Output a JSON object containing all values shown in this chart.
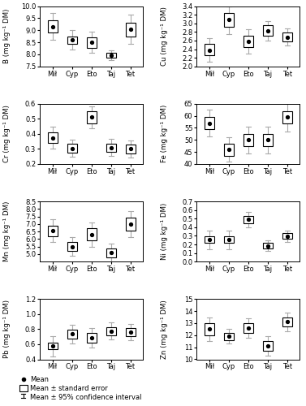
{
  "cat_labels": [
    "Mił",
    "Cyp",
    "Eto",
    "Taj",
    "Tet"
  ],
  "subplots": [
    {
      "label": "B (mg kg⁻¹ DM)",
      "ylim": [
        7.5,
        10.0
      ],
      "yticks": [
        7.5,
        8.0,
        8.5,
        9.0,
        9.5,
        10.0
      ],
      "mean": [
        9.15,
        8.6,
        8.5,
        7.95,
        9.05
      ],
      "se_low": [
        8.9,
        8.45,
        8.28,
        7.85,
        8.75
      ],
      "se_high": [
        9.4,
        8.75,
        8.72,
        8.05,
        9.3
      ],
      "ci_low": [
        8.6,
        8.2,
        8.05,
        7.75,
        8.45
      ],
      "ci_high": [
        9.7,
        9.0,
        8.95,
        8.15,
        9.65
      ]
    },
    {
      "label": "Cu (mg kg⁻¹ DM)",
      "ylim": [
        2.0,
        3.4
      ],
      "yticks": [
        2.0,
        2.2,
        2.4,
        2.6,
        2.8,
        3.0,
        3.2,
        3.4
      ],
      "mean": [
        2.38,
        3.08,
        2.58,
        2.83,
        2.68
      ],
      "se_low": [
        2.25,
        2.92,
        2.45,
        2.72,
        2.58
      ],
      "se_high": [
        2.52,
        3.24,
        2.72,
        2.95,
        2.78
      ],
      "ci_low": [
        2.1,
        2.75,
        2.3,
        2.6,
        2.48
      ],
      "ci_high": [
        2.66,
        3.4,
        2.86,
        3.06,
        2.88
      ]
    },
    {
      "label": "Cr (mg kg⁻¹ DM)",
      "ylim": [
        0.2,
        0.6
      ],
      "yticks": [
        0.2,
        0.3,
        0.4,
        0.5,
        0.6
      ],
      "mean": [
        0.375,
        0.305,
        0.51,
        0.31,
        0.3
      ],
      "se_low": [
        0.34,
        0.278,
        0.472,
        0.283,
        0.272
      ],
      "se_high": [
        0.412,
        0.332,
        0.548,
        0.337,
        0.328
      ],
      "ci_low": [
        0.305,
        0.248,
        0.435,
        0.255,
        0.242
      ],
      "ci_high": [
        0.447,
        0.362,
        0.585,
        0.365,
        0.358
      ]
    },
    {
      "label": "Fe (mg kg⁻¹ DM)",
      "ylim": [
        40.0,
        65.0
      ],
      "yticks": [
        40,
        45,
        50,
        55,
        60,
        65
      ],
      "mean": [
        57.0,
        46.0,
        50.0,
        50.0,
        59.5
      ],
      "se_low": [
        54.5,
        43.5,
        47.5,
        47.5,
        57.0
      ],
      "se_high": [
        59.5,
        48.5,
        52.5,
        52.5,
        62.0
      ],
      "ci_low": [
        51.5,
        41.0,
        44.5,
        44.5,
        53.5
      ],
      "ci_high": [
        62.5,
        51.0,
        55.5,
        55.5,
        65.5
      ]
    },
    {
      "label": "Mn (mg kg⁻¹ DM)",
      "ylim": [
        4.5,
        8.5
      ],
      "yticks": [
        5.0,
        5.5,
        6.0,
        6.5,
        7.0,
        7.5,
        8.0,
        8.5
      ],
      "mean": [
        6.55,
        5.5,
        6.3,
        5.1,
        7.0
      ],
      "se_low": [
        6.2,
        5.2,
        5.9,
        4.8,
        6.58
      ],
      "se_high": [
        6.9,
        5.8,
        6.7,
        5.4,
        7.42
      ],
      "ci_low": [
        5.8,
        4.88,
        5.48,
        4.48,
        6.15
      ],
      "ci_high": [
        7.3,
        6.12,
        7.12,
        5.72,
        7.85
      ]
    },
    {
      "label": "Ni (mg kg⁻¹ DM)",
      "ylim": [
        0.0,
        0.7
      ],
      "yticks": [
        0.0,
        0.1,
        0.2,
        0.3,
        0.4,
        0.5,
        0.6,
        0.7
      ],
      "mean": [
        0.255,
        0.255,
        0.49,
        0.185,
        0.295
      ],
      "se_low": [
        0.22,
        0.218,
        0.445,
        0.155,
        0.262
      ],
      "se_high": [
        0.29,
        0.292,
        0.535,
        0.215,
        0.328
      ],
      "ci_low": [
        0.148,
        0.145,
        0.398,
        0.122,
        0.228
      ],
      "ci_high": [
        0.362,
        0.365,
        0.582,
        0.248,
        0.362
      ]
    },
    {
      "label": "Pb (mg kg⁻¹ DM)",
      "ylim": [
        0.4,
        1.2
      ],
      "yticks": [
        0.4,
        0.6,
        0.8,
        1.0,
        1.2
      ],
      "mean": [
        0.575,
        0.735,
        0.685,
        0.775,
        0.76
      ],
      "se_low": [
        0.53,
        0.672,
        0.625,
        0.72,
        0.705
      ],
      "se_high": [
        0.62,
        0.798,
        0.745,
        0.83,
        0.815
      ],
      "ci_low": [
        0.44,
        0.608,
        0.56,
        0.665,
        0.65
      ],
      "ci_high": [
        0.71,
        0.862,
        0.81,
        0.885,
        0.87
      ]
    },
    {
      "label": "Zn (mg kg⁻¹ DM)",
      "ylim": [
        10.0,
        15.0
      ],
      "yticks": [
        10,
        11,
        12,
        13,
        14,
        15
      ],
      "mean": [
        12.5,
        11.9,
        12.6,
        11.1,
        13.1
      ],
      "se_low": [
        12.0,
        11.6,
        12.2,
        10.7,
        12.7
      ],
      "se_high": [
        13.0,
        12.2,
        13.0,
        11.5,
        13.5
      ],
      "ci_low": [
        11.5,
        11.3,
        11.8,
        10.3,
        12.3
      ],
      "ci_high": [
        13.5,
        12.5,
        13.4,
        11.9,
        13.9
      ]
    }
  ],
  "legend": {
    "mean_label": "Mean",
    "se_label": "Mean ± standard error",
    "ci_label": "Mean ± 95% confidence interval"
  },
  "box_width": 0.5,
  "whisker_width": 0.25
}
